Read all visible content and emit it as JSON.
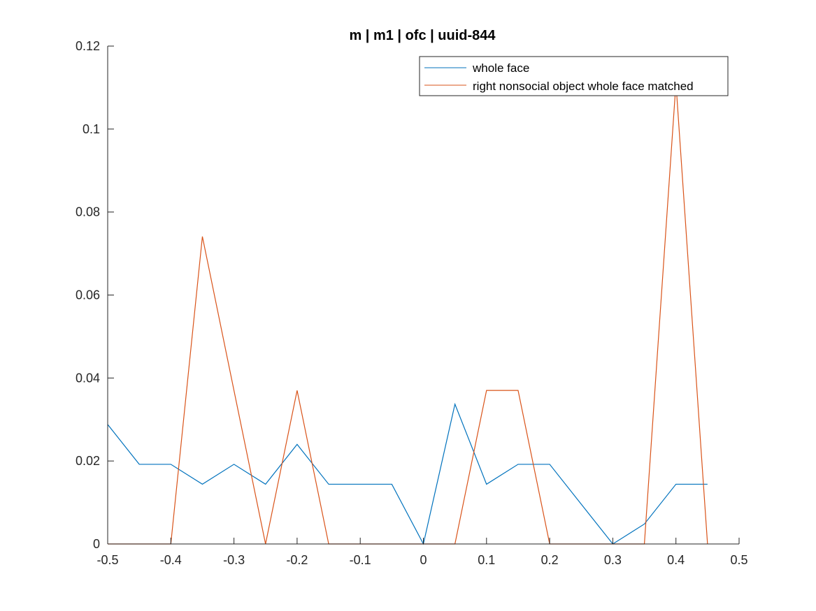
{
  "chart_data": {
    "type": "line",
    "title": "m | m1 | ofc | uuid-844",
    "xlabel": "",
    "ylabel": "",
    "xlim": [
      -0.5,
      0.5
    ],
    "ylim": [
      0,
      0.12
    ],
    "xticks": [
      -0.5,
      -0.4,
      -0.3,
      -0.2,
      -0.1,
      0,
      0.1,
      0.2,
      0.3,
      0.4,
      0.5
    ],
    "xtick_labels": [
      "-0.5",
      "-0.4",
      "-0.3",
      "-0.2",
      "-0.1",
      "0",
      "0.1",
      "0.2",
      "0.3",
      "0.4",
      "0.5"
    ],
    "yticks": [
      0,
      0.02,
      0.04,
      0.06,
      0.08,
      0.1,
      0.12
    ],
    "ytick_labels": [
      "0",
      "0.02",
      "0.04",
      "0.06",
      "0.08",
      "0.1",
      "0.12"
    ],
    "grid": false,
    "legend_position": "top-right",
    "x": [
      -0.5,
      -0.45,
      -0.4,
      -0.35,
      -0.3,
      -0.25,
      -0.2,
      -0.15,
      -0.1,
      -0.05,
      0,
      0.05,
      0.1,
      0.15,
      0.2,
      0.25,
      0.3,
      0.35,
      0.4,
      0.45
    ],
    "series": [
      {
        "name": "whole face",
        "color": "#0072BD",
        "values": [
          0.0288,
          0.0192,
          0.0192,
          0.0144,
          0.0192,
          0.0144,
          0.024,
          0.0144,
          0.0144,
          0.0144,
          0,
          0.0337,
          0.0144,
          0.0192,
          0.0192,
          0.0096,
          0,
          0.0048,
          0.0144,
          0.0144
        ]
      },
      {
        "name": "right nonsocial object whole face matched",
        "color": "#D95319",
        "values": [
          0,
          0,
          0,
          0.0741,
          0.037,
          0,
          0.037,
          0,
          0,
          0,
          0,
          0,
          0.037,
          0.037,
          0,
          0,
          0,
          0,
          0.1111,
          0
        ]
      }
    ]
  }
}
